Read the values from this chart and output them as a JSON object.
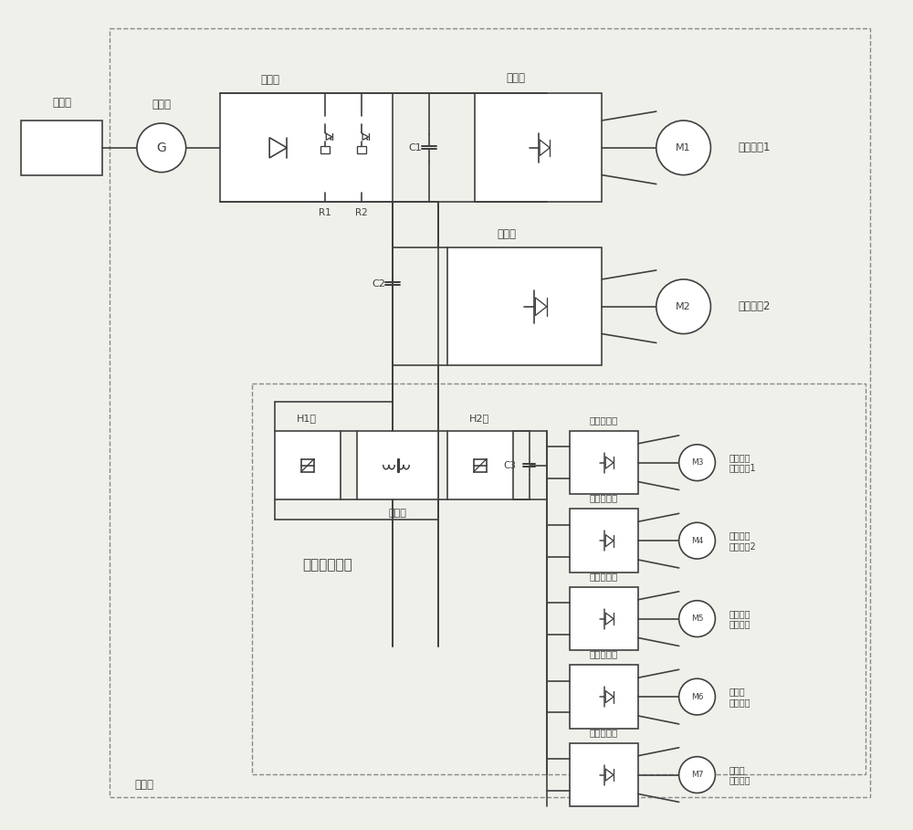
{
  "bg_color": "#f0f0eb",
  "line_color": "#404040",
  "text_color": "#404040",
  "labels": {
    "diesel": "柴油机",
    "generator": "发电机",
    "rectifier": "整流器",
    "inverter1": "逆变器",
    "inverter2": "逆变器",
    "traction1": "焦引电机1",
    "traction2": "焦引电机2",
    "R1": "R1",
    "R2": "R2",
    "C1": "C1",
    "C2": "C2",
    "C3": "C3",
    "H1": "H1桥",
    "H2": "H2桥",
    "transformer": "变压器",
    "inv_module": "逆变器模块",
    "aux_circuit": "辅助供电电路",
    "converter": "变流器",
    "brake_fan1": "制动电阔\n冷却风机1",
    "brake_fan2": "制动电阔\n冷却风机2",
    "traction_fan": "焦引电机\n冷却风机",
    "converter_fan": "交流器\n冷却风机",
    "diesel_fan": "柴油机\n冷却风机"
  }
}
